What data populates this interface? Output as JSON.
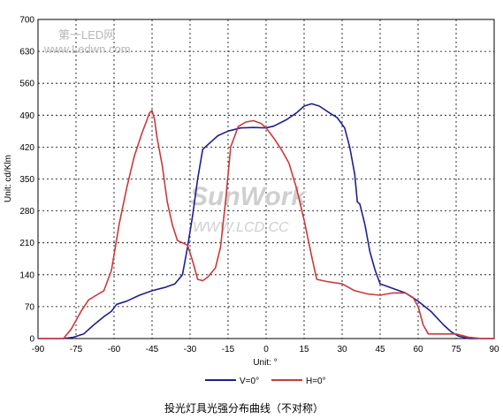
{
  "chart_data": {
    "type": "line",
    "xlabel": "Unit: °",
    "ylabel": "Unit: cd/Klm",
    "xlim": [
      -90,
      90
    ],
    "ylim": [
      0,
      700
    ],
    "xticks": [
      "-90",
      "-75",
      "-60",
      "-45",
      "-30",
      "-15",
      "0",
      "15",
      "30",
      "45",
      "60",
      "75",
      "90"
    ],
    "yticks": [
      "0",
      "70",
      "140",
      "210",
      "280",
      "350",
      "420",
      "490",
      "560",
      "630",
      "700"
    ],
    "grid": true,
    "legend_position": "bottom",
    "series": [
      {
        "name": "V=0°",
        "color": "#1f1f8f",
        "points": [
          [
            -90,
            0
          ],
          [
            -80,
            0
          ],
          [
            -76,
            3
          ],
          [
            -72,
            10
          ],
          [
            -68,
            30
          ],
          [
            -64,
            48
          ],
          [
            -61,
            60
          ],
          [
            -59,
            75
          ],
          [
            -55,
            82
          ],
          [
            -50,
            95
          ],
          [
            -45,
            105
          ],
          [
            -40,
            112
          ],
          [
            -36,
            120
          ],
          [
            -33,
            140
          ],
          [
            -31,
            200
          ],
          [
            -29,
            270
          ],
          [
            -27,
            350
          ],
          [
            -25,
            415
          ],
          [
            -22,
            430
          ],
          [
            -19,
            445
          ],
          [
            -15,
            455
          ],
          [
            -10,
            462
          ],
          [
            -5,
            463
          ],
          [
            0,
            462
          ],
          [
            3,
            466
          ],
          [
            8,
            480
          ],
          [
            12,
            495
          ],
          [
            15,
            510
          ],
          [
            18,
            515
          ],
          [
            21,
            510
          ],
          [
            25,
            495
          ],
          [
            28,
            485
          ],
          [
            31,
            462
          ],
          [
            33,
            420
          ],
          [
            35,
            360
          ],
          [
            36,
            300
          ],
          [
            37,
            295
          ],
          [
            39,
            250
          ],
          [
            41,
            190
          ],
          [
            43,
            150
          ],
          [
            45,
            120
          ],
          [
            50,
            110
          ],
          [
            55,
            100
          ],
          [
            60,
            82
          ],
          [
            65,
            60
          ],
          [
            70,
            30
          ],
          [
            73,
            15
          ],
          [
            76,
            5
          ],
          [
            80,
            0
          ],
          [
            90,
            0
          ]
        ]
      },
      {
        "name": "H=0°",
        "color": "#c93a3a",
        "points": [
          [
            -90,
            0
          ],
          [
            -80,
            0
          ],
          [
            -77,
            20
          ],
          [
            -73,
            60
          ],
          [
            -70,
            85
          ],
          [
            -67,
            95
          ],
          [
            -64,
            105
          ],
          [
            -61,
            150
          ],
          [
            -58,
            250
          ],
          [
            -55,
            330
          ],
          [
            -52,
            400
          ],
          [
            -49,
            450
          ],
          [
            -47,
            480
          ],
          [
            -46,
            495
          ],
          [
            -45,
            500
          ],
          [
            -44,
            480
          ],
          [
            -43,
            440
          ],
          [
            -41,
            380
          ],
          [
            -39,
            300
          ],
          [
            -37,
            250
          ],
          [
            -35,
            215
          ],
          [
            -33,
            210
          ],
          [
            -31,
            205
          ],
          [
            -29,
            170
          ],
          [
            -27,
            130
          ],
          [
            -25,
            127
          ],
          [
            -23,
            135
          ],
          [
            -20,
            155
          ],
          [
            -18,
            200
          ],
          [
            -16,
            300
          ],
          [
            -14,
            420
          ],
          [
            -11,
            465
          ],
          [
            -8,
            475
          ],
          [
            -5,
            478
          ],
          [
            -2,
            472
          ],
          [
            0,
            462
          ],
          [
            3,
            440
          ],
          [
            6,
            415
          ],
          [
            9,
            385
          ],
          [
            12,
            330
          ],
          [
            15,
            260
          ],
          [
            18,
            180
          ],
          [
            20,
            130
          ],
          [
            24,
            125
          ],
          [
            30,
            120
          ],
          [
            35,
            105
          ],
          [
            40,
            98
          ],
          [
            45,
            95
          ],
          [
            50,
            100
          ],
          [
            55,
            100
          ],
          [
            58,
            90
          ],
          [
            60,
            70
          ],
          [
            62,
            30
          ],
          [
            64,
            10
          ],
          [
            75,
            10
          ],
          [
            80,
            3
          ],
          [
            85,
            0
          ],
          [
            90,
            0
          ]
        ]
      }
    ]
  },
  "watermark": {
    "site_cn": "第一LED网",
    "site_url": "www.Ledwn.com",
    "brand": "SunWork",
    "brand_url": "WWW.LCD.CC"
  },
  "caption": "投光灯具光强分布曲线（不对称）"
}
